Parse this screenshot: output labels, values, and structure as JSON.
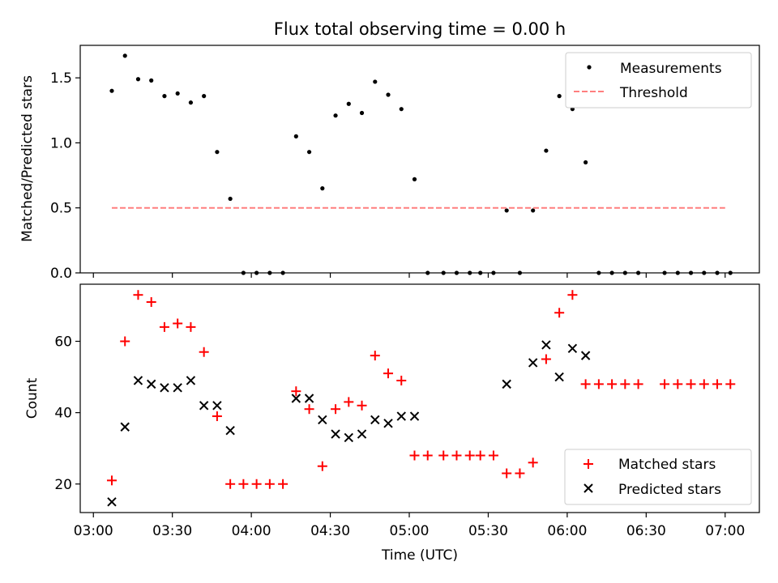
{
  "chart_data": [
    {
      "type": "scatter",
      "title": "Flux total observing time = 0.00 h",
      "xlabel": "",
      "ylabel": "Matched/Predicted stars",
      "xlim": [
        "02:55",
        "07:13"
      ],
      "ylim": [
        0,
        1.75
      ],
      "xticks": [
        "03:00",
        "03:30",
        "04:00",
        "04:30",
        "05:00",
        "05:30",
        "06:00",
        "06:30",
        "07:00"
      ],
      "yticks": [
        "0.0",
        "0.5",
        "1.0",
        "1.5"
      ],
      "legend_position": "top-right",
      "series": [
        {
          "name": "Measurements",
          "marker": "dot",
          "color": "#000000",
          "x": [
            "03:07",
            "03:12",
            "03:17",
            "03:22",
            "03:27",
            "03:32",
            "03:37",
            "03:42",
            "03:47",
            "03:52",
            "03:57",
            "04:02",
            "04:07",
            "04:12",
            "04:17",
            "04:22",
            "04:27",
            "04:32",
            "04:37",
            "04:42",
            "04:47",
            "04:52",
            "04:57",
            "05:02",
            "05:07",
            "05:13",
            "05:18",
            "05:23",
            "05:27",
            "05:32",
            "05:37",
            "05:42",
            "05:47",
            "05:52",
            "05:57",
            "06:02",
            "06:07",
            "06:12",
            "06:17",
            "06:22",
            "06:27",
            "06:37",
            "06:42",
            "06:47",
            "06:52",
            "06:57",
            "07:02"
          ],
          "y": [
            1.4,
            1.67,
            1.49,
            1.48,
            1.36,
            1.38,
            1.31,
            1.36,
            0.93,
            0.57,
            0,
            0,
            0,
            0,
            1.05,
            0.93,
            0.65,
            1.21,
            1.3,
            1.23,
            1.47,
            1.37,
            1.26,
            0.72,
            0,
            0,
            0,
            0,
            0,
            0,
            0.48,
            0,
            0.48,
            0.94,
            1.36,
            1.26,
            0.85,
            0,
            0,
            0,
            0,
            0,
            0,
            0,
            0,
            0,
            0
          ]
        },
        {
          "name": "Threshold",
          "style": "dashed",
          "color": "#ff7f7f",
          "x": [
            "03:07",
            "07:00"
          ],
          "y": [
            0.5,
            0.5
          ]
        }
      ]
    },
    {
      "type": "scatter",
      "title": "",
      "xlabel": "Time (UTC)",
      "ylabel": "Count",
      "xlim": [
        "02:55",
        "07:13"
      ],
      "ylim": [
        12,
        76
      ],
      "xticks": [
        "03:00",
        "03:30",
        "04:00",
        "04:30",
        "05:00",
        "05:30",
        "06:00",
        "06:30",
        "07:00"
      ],
      "yticks": [
        "20",
        "40",
        "60"
      ],
      "legend_position": "bottom-right",
      "series": [
        {
          "name": "Matched stars",
          "marker": "plus",
          "color": "#ff0000",
          "x": [
            "03:07",
            "03:12",
            "03:17",
            "03:22",
            "03:27",
            "03:32",
            "03:37",
            "03:42",
            "03:47",
            "03:52",
            "03:57",
            "04:02",
            "04:07",
            "04:12",
            "04:17",
            "04:22",
            "04:27",
            "04:32",
            "04:37",
            "04:42",
            "04:47",
            "04:52",
            "04:57",
            "05:02",
            "05:07",
            "05:13",
            "05:18",
            "05:23",
            "05:27",
            "05:32",
            "05:37",
            "05:42",
            "05:47",
            "05:52",
            "05:57",
            "06:02",
            "06:07",
            "06:12",
            "06:17",
            "06:22",
            "06:27",
            "06:37",
            "06:42",
            "06:47",
            "06:52",
            "06:57",
            "07:02"
          ],
          "y": [
            21,
            60,
            73,
            71,
            64,
            65,
            64,
            57,
            39,
            20,
            20,
            20,
            20,
            20,
            46,
            41,
            25,
            41,
            43,
            42,
            56,
            51,
            49,
            28,
            28,
            28,
            28,
            28,
            28,
            28,
            23,
            23,
            26,
            55,
            68,
            73,
            48,
            48,
            48,
            48,
            48,
            48,
            48,
            48,
            48,
            48,
            48
          ]
        },
        {
          "name": "Predicted stars",
          "marker": "x",
          "color": "#000000",
          "x": [
            "03:07",
            "03:12",
            "03:17",
            "03:22",
            "03:27",
            "03:32",
            "03:37",
            "03:42",
            "03:47",
            "03:52",
            "04:17",
            "04:22",
            "04:27",
            "04:32",
            "04:37",
            "04:42",
            "04:47",
            "04:52",
            "04:57",
            "05:02",
            "05:37",
            "05:47",
            "05:52",
            "05:57",
            "06:02",
            "06:07"
          ],
          "y": [
            15,
            36,
            49,
            48,
            47,
            47,
            49,
            42,
            42,
            35,
            44,
            44,
            38,
            34,
            33,
            34,
            38,
            37,
            39,
            39,
            48,
            54,
            59,
            50,
            58,
            56
          ]
        }
      ]
    }
  ]
}
